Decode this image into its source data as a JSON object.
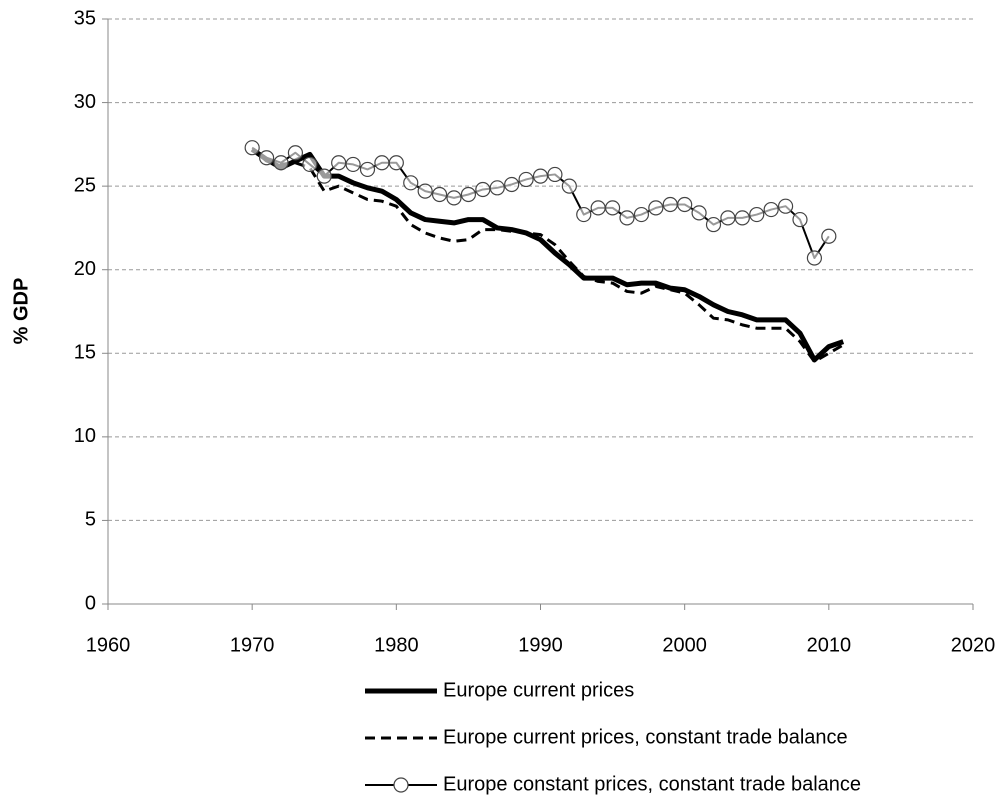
{
  "chart_data": {
    "type": "line",
    "y_label": "% GDP",
    "x": [
      1970,
      1971,
      1972,
      1973,
      1974,
      1975,
      1976,
      1977,
      1978,
      1979,
      1980,
      1981,
      1982,
      1983,
      1984,
      1985,
      1986,
      1987,
      1988,
      1989,
      1990,
      1991,
      1992,
      1993,
      1994,
      1995,
      1996,
      1997,
      1998,
      1999,
      2000,
      2001,
      2002,
      2003,
      2004,
      2005,
      2006,
      2007,
      2008,
      2009,
      2010,
      2011
    ],
    "series": [
      {
        "name": "Europe current prices",
        "color": "#000000",
        "linestyle": "solid",
        "linewidth": 5,
        "values": [
          27.2,
          26.6,
          26.1,
          26.5,
          26.9,
          25.6,
          25.6,
          25.2,
          24.9,
          24.7,
          24.2,
          23.4,
          23.0,
          22.9,
          22.8,
          23.0,
          23.0,
          22.5,
          22.4,
          22.2,
          21.8,
          21.0,
          20.3,
          19.5,
          19.5,
          19.5,
          19.1,
          19.2,
          19.2,
          18.9,
          18.8,
          18.4,
          17.9,
          17.5,
          17.3,
          17.0,
          17.0,
          17.0,
          16.2,
          14.6,
          15.4,
          15.7
        ]
      },
      {
        "name": "Europe current prices, constant trade balance",
        "color": "#000000",
        "linestyle": "dashed",
        "linewidth": 3,
        "values": [
          27.2,
          26.5,
          26.3,
          26.4,
          26.1,
          24.7,
          25.0,
          24.6,
          24.2,
          24.1,
          23.8,
          22.7,
          22.2,
          21.9,
          21.7,
          21.8,
          22.4,
          22.4,
          22.3,
          22.2,
          22.1,
          21.5,
          20.5,
          19.6,
          19.3,
          19.2,
          18.7,
          18.6,
          19.0,
          18.8,
          18.6,
          17.9,
          17.1,
          17.0,
          16.7,
          16.5,
          16.5,
          16.5,
          15.7,
          14.5,
          15.0,
          15.5
        ]
      },
      {
        "name": "Europe constant prices, constant trade balance",
        "color": "#000000",
        "linestyle": "solid",
        "linewidth": 2,
        "marker": "circle",
        "values": [
          27.3,
          26.7,
          26.4,
          27.0,
          26.3,
          25.6,
          26.4,
          26.3,
          26.0,
          26.4,
          26.4,
          25.2,
          24.7,
          24.5,
          24.3,
          24.5,
          24.8,
          24.9,
          25.1,
          25.4,
          25.6,
          25.7,
          25.0,
          23.3,
          23.7,
          23.7,
          23.1,
          23.3,
          23.7,
          23.9,
          23.9,
          23.4,
          22.7,
          23.1,
          23.1,
          23.3,
          23.6,
          23.8,
          23.0,
          20.7,
          22.0,
          null
        ]
      }
    ],
    "xlim": [
      1960,
      2020
    ],
    "xticks": [
      1960,
      1970,
      1980,
      1990,
      2000,
      2010,
      2020
    ],
    "ylim": [
      0,
      35
    ],
    "yticks": [
      0,
      5,
      10,
      15,
      20,
      25,
      30,
      35
    ],
    "grid": true,
    "legend": "bottom"
  }
}
